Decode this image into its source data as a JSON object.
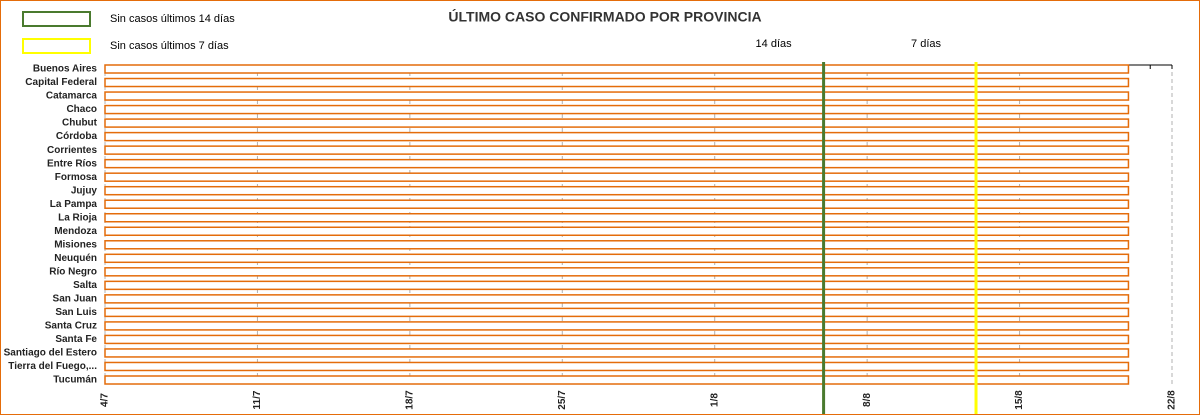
{
  "chart_data": {
    "type": "bar",
    "orientation": "horizontal",
    "title": "ÚLTIMO CASO CONFIRMADO POR PROVINCIA",
    "legend": [
      {
        "label": "Sin casos últimos 14 días",
        "color": "#4a7a2e"
      },
      {
        "label": "Sin casos últimos 7 días",
        "color": "#ffff00"
      }
    ],
    "categories": [
      "Buenos Aires",
      "Capital Federal",
      "Catamarca",
      "Chaco",
      "Chubut",
      "Córdoba",
      "Corrientes",
      "Entre Ríos",
      "Formosa",
      "Jujuy",
      "La Pampa",
      "La Rioja",
      "Mendoza",
      "Misiones",
      "Neuquén",
      "Río Negro",
      "Salta",
      "San Juan",
      "San Luis",
      "Santa Cruz",
      "Santa Fe",
      "Santiago del Estero",
      "Tierra del Fuego,...",
      "Tucumán"
    ],
    "values": [
      47,
      47,
      47,
      47,
      47,
      47,
      47,
      47,
      47,
      47,
      47,
      47,
      47,
      47,
      47,
      47,
      47,
      47,
      47,
      47,
      47,
      47,
      47,
      47
    ],
    "color": "#e46c0a",
    "xlim": [
      0,
      49
    ],
    "xticks": [
      {
        "value": 0,
        "label": "4/7"
      },
      {
        "value": 7,
        "label": "11/7"
      },
      {
        "value": 14,
        "label": "18/7"
      },
      {
        "value": 21,
        "label": "25/7"
      },
      {
        "value": 28,
        "label": "1/8"
      },
      {
        "value": 35,
        "label": "8/8"
      },
      {
        "value": 42,
        "label": "15/8"
      },
      {
        "value": 49,
        "label": "22/8"
      }
    ],
    "xticks_minor": [
      0,
      1,
      2,
      3,
      4,
      5,
      6,
      7,
      8,
      9,
      10,
      11,
      12,
      13,
      14,
      15,
      16,
      17,
      18,
      19,
      20,
      21,
      22,
      23,
      24,
      25,
      26,
      27,
      28,
      29,
      30,
      31,
      32,
      33,
      34,
      35,
      36,
      37,
      38,
      39,
      40,
      41,
      42,
      43,
      44,
      45,
      46,
      47,
      48,
      49
    ],
    "grid": true,
    "reference_lines": [
      {
        "label": "14 días",
        "value": 33,
        "color": "#4a7a2e"
      },
      {
        "label": "7 días",
        "value": 40,
        "color": "#ffff00"
      }
    ]
  }
}
